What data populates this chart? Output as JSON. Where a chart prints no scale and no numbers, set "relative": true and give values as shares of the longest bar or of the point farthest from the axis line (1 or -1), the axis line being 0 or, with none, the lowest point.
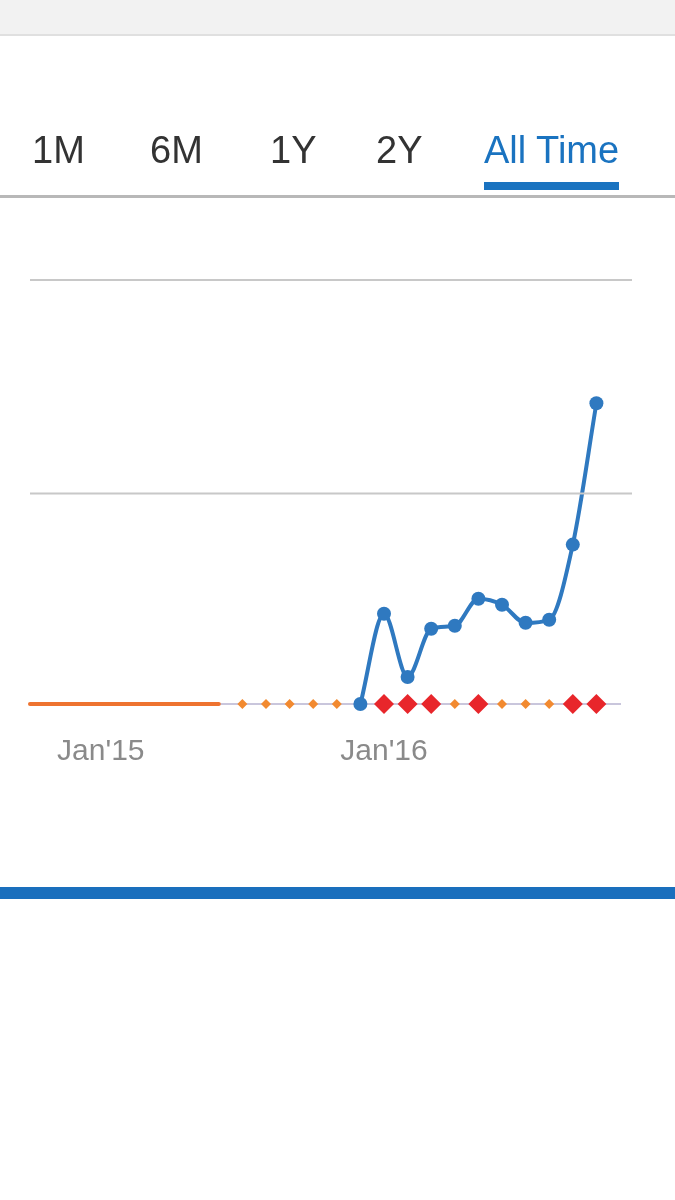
{
  "chart_data": {
    "type": "line",
    "relative": true,
    "legend": false,
    "ref_lines": [
      {
        "axis": "y",
        "value": 0.7,
        "color": "#c8c8c8"
      },
      {
        "axis": "y",
        "value": 1.41,
        "color": "#c8c8c8"
      }
    ],
    "annotations": [
      "1M",
      "6M",
      "1Y",
      "2Y",
      "All Time"
    ],
    "categories": [
      null,
      null,
      null,
      "Jan'15",
      null,
      null,
      null,
      null,
      null,
      null,
      null,
      null,
      null,
      null,
      null,
      "Jan'16",
      null,
      null,
      null,
      null,
      null,
      null,
      null,
      null,
      null,
      null
    ],
    "series": [
      {
        "type": "line",
        "color": "#2f79c0",
        "marker": "circle",
        "line_style": "solid",
        "values": [
          null,
          null,
          null,
          null,
          null,
          null,
          null,
          null,
          null,
          null,
          null,
          null,
          null,
          null,
          0,
          0.3,
          0.09,
          0.25,
          0.26,
          0.35,
          0.33,
          0.27,
          0.28,
          0.53,
          1,
          null
        ]
      },
      {
        "type": "line",
        "color": "#ee7330",
        "marker": "none",
        "line_style": "solid",
        "values": [
          0,
          0,
          0,
          0,
          0,
          0,
          0,
          0,
          0,
          null,
          null,
          null,
          null,
          null,
          null,
          null,
          null,
          null,
          null,
          null,
          null,
          null,
          null,
          null,
          null,
          null
        ]
      },
      {
        "type": "scatter",
        "color": "#f28a30",
        "marker": "diamond",
        "values": [
          null,
          null,
          null,
          null,
          null,
          null,
          null,
          null,
          null,
          0,
          0,
          0,
          0,
          0,
          null,
          null,
          null,
          null,
          0,
          null,
          0,
          0,
          0,
          null,
          null,
          null
        ]
      },
      {
        "type": "scatter",
        "color": "#e8262b",
        "marker": "diamond",
        "values": [
          null,
          null,
          null,
          null,
          null,
          null,
          null,
          null,
          null,
          null,
          null,
          null,
          null,
          null,
          null,
          0,
          0,
          0,
          null,
          0,
          null,
          null,
          null,
          0,
          0,
          null
        ]
      }
    ]
  }
}
